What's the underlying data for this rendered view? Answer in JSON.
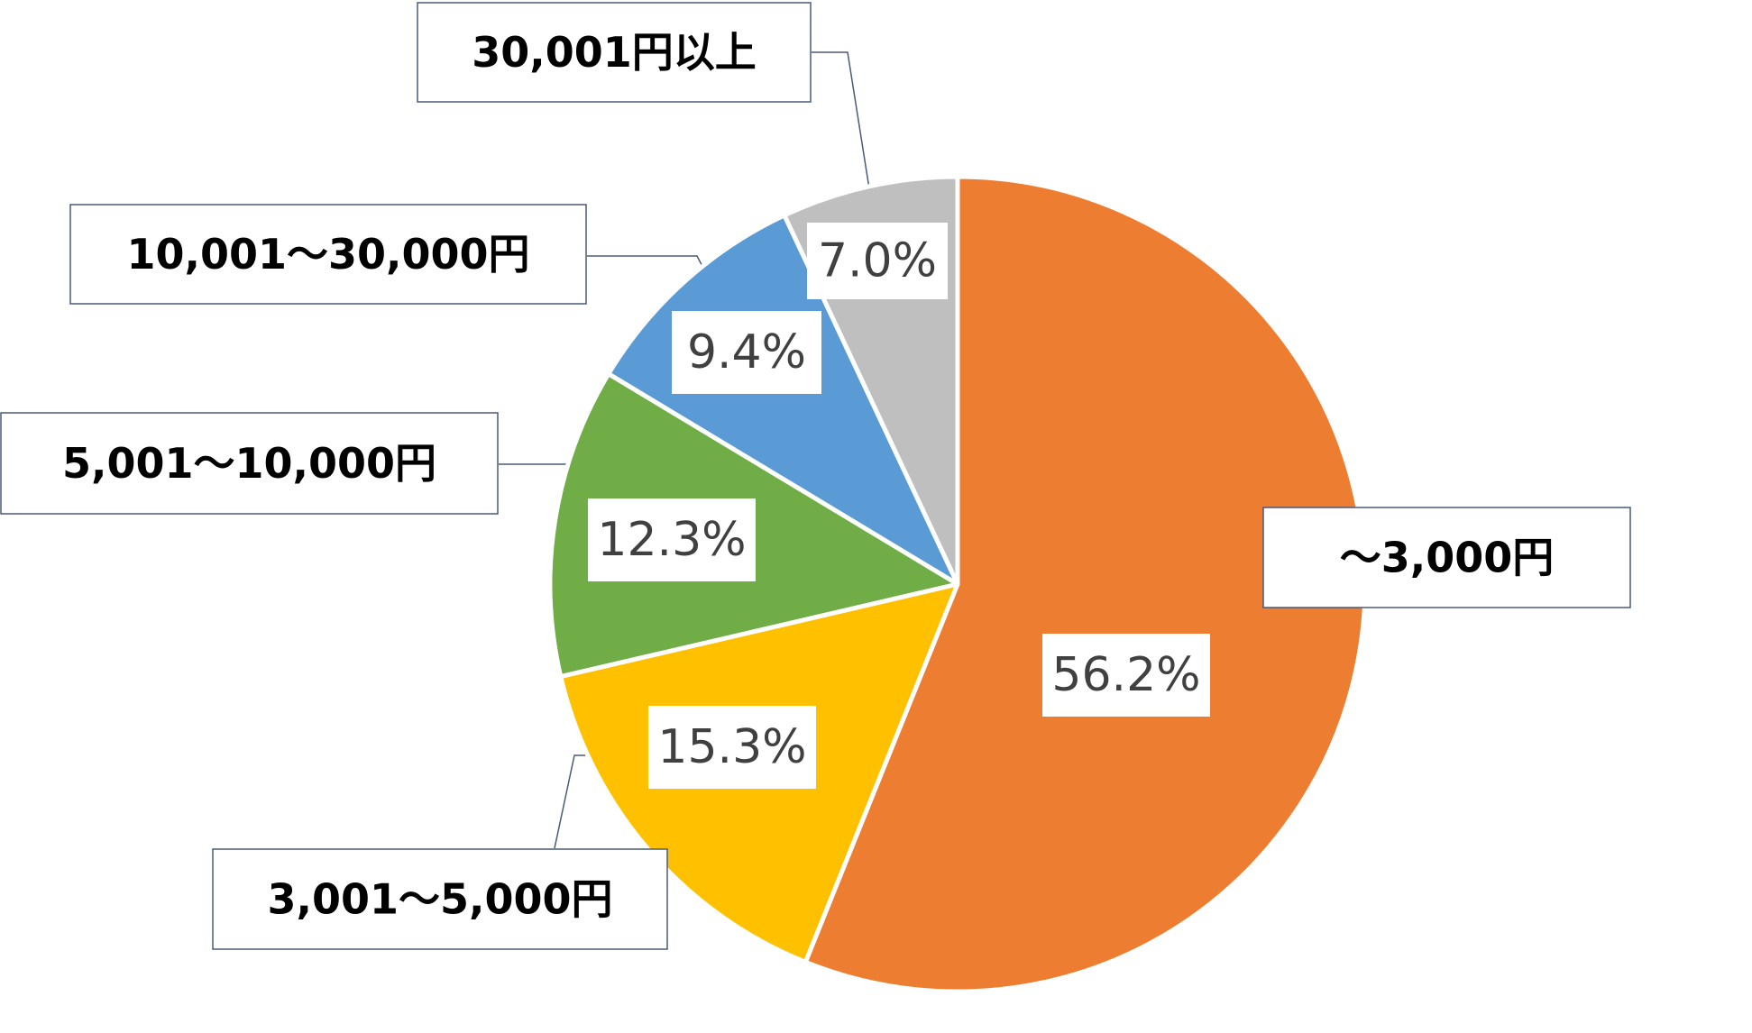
{
  "chart_data": {
    "type": "pie",
    "start_angle_deg": 0,
    "direction": "clockwise",
    "data_labels": "percent",
    "slices": [
      {
        "category": "～3,000円",
        "value": 56.2,
        "label": "56.2%",
        "color": "#ED7D31"
      },
      {
        "category": "3,001～5,000円",
        "value": 15.3,
        "label": "15.3%",
        "color": "#FFC000"
      },
      {
        "category": "5,001～10,000円",
        "value": 12.3,
        "label": "12.3%",
        "color": "#70AD47"
      },
      {
        "category": "10,001～30,000円",
        "value": 9.4,
        "label": "9.4%",
        "color": "#5B9BD5"
      },
      {
        "category": "30,001円以上",
        "value": 7.0,
        "label": "7.0%",
        "color": "#BFBFBF"
      }
    ]
  }
}
